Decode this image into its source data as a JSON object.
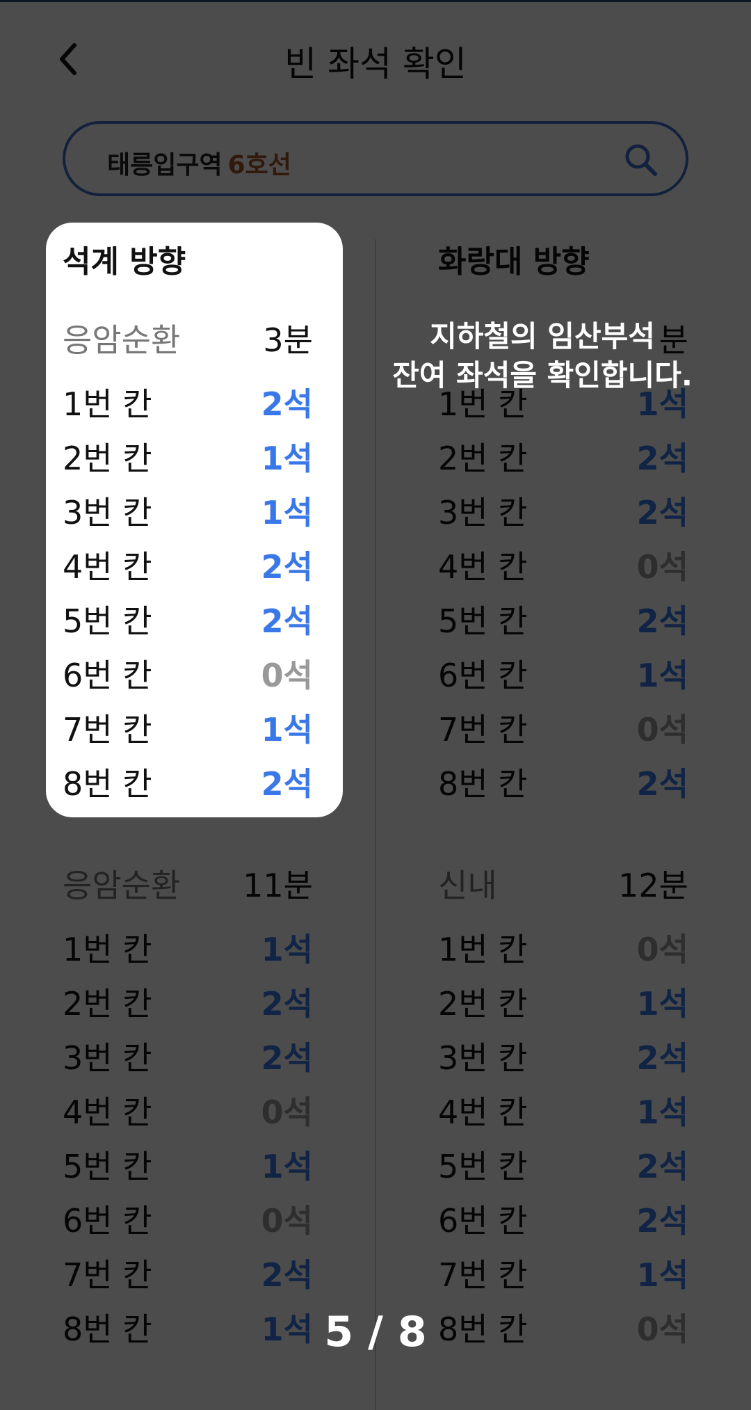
{
  "header": {
    "title": "빈 좌석 확인",
    "back_icon": "chevron-left-icon"
  },
  "search": {
    "station": "태릉입구역",
    "line": "6호선",
    "icon": "search-icon"
  },
  "colors": {
    "accent": "#3d6fd1",
    "seat_available": "#3a78e8",
    "seat_empty": "#999999",
    "line6": "#a4562a"
  },
  "left": {
    "direction": "석계 방향",
    "trains": [
      {
        "dest": "응암순환",
        "min": "3분",
        "cars": [
          {
            "car": "1번 칸",
            "seat": "2석",
            "zero": false
          },
          {
            "car": "2번 칸",
            "seat": "1석",
            "zero": false
          },
          {
            "car": "3번 칸",
            "seat": "1석",
            "zero": false
          },
          {
            "car": "4번 칸",
            "seat": "2석",
            "zero": false
          },
          {
            "car": "5번 칸",
            "seat": "2석",
            "zero": false
          },
          {
            "car": "6번 칸",
            "seat": "0석",
            "zero": true
          },
          {
            "car": "7번 칸",
            "seat": "1석",
            "zero": false
          },
          {
            "car": "8번 칸",
            "seat": "2석",
            "zero": false
          }
        ]
      },
      {
        "dest": "응암순환",
        "min": "11분",
        "cars": [
          {
            "car": "1번 칸",
            "seat": "1석",
            "zero": false
          },
          {
            "car": "2번 칸",
            "seat": "2석",
            "zero": false
          },
          {
            "car": "3번 칸",
            "seat": "2석",
            "zero": false
          },
          {
            "car": "4번 칸",
            "seat": "0석",
            "zero": true
          },
          {
            "car": "5번 칸",
            "seat": "1석",
            "zero": false
          },
          {
            "car": "6번 칸",
            "seat": "0석",
            "zero": true
          },
          {
            "car": "7번 칸",
            "seat": "2석",
            "zero": false
          },
          {
            "car": "8번 칸",
            "seat": "1석",
            "zero": false
          }
        ]
      }
    ]
  },
  "right": {
    "direction": "화랑대 방향",
    "trains": [
      {
        "dest": "",
        "min": "분",
        "cars": [
          {
            "car": "1번 칸",
            "seat": "1석",
            "zero": false
          },
          {
            "car": "2번 칸",
            "seat": "2석",
            "zero": false
          },
          {
            "car": "3번 칸",
            "seat": "2석",
            "zero": false
          },
          {
            "car": "4번 칸",
            "seat": "0석",
            "zero": true
          },
          {
            "car": "5번 칸",
            "seat": "2석",
            "zero": false
          },
          {
            "car": "6번 칸",
            "seat": "1석",
            "zero": false
          },
          {
            "car": "7번 칸",
            "seat": "0석",
            "zero": true
          },
          {
            "car": "8번 칸",
            "seat": "2석",
            "zero": false
          }
        ]
      },
      {
        "dest": "신내",
        "min": "12분",
        "cars": [
          {
            "car": "1번 칸",
            "seat": "0석",
            "zero": true
          },
          {
            "car": "2번 칸",
            "seat": "1석",
            "zero": false
          },
          {
            "car": "3번 칸",
            "seat": "2석",
            "zero": false
          },
          {
            "car": "4번 칸",
            "seat": "1석",
            "zero": false
          },
          {
            "car": "5번 칸",
            "seat": "2석",
            "zero": false
          },
          {
            "car": "6번 칸",
            "seat": "2석",
            "zero": false
          },
          {
            "car": "7번 칸",
            "seat": "1석",
            "zero": false
          },
          {
            "car": "8번 칸",
            "seat": "0석",
            "zero": true
          }
        ]
      }
    ]
  },
  "tip": {
    "line1": "지하철의 임산부석",
    "line2": "잔여 좌석을 확인합니다."
  },
  "pager": {
    "text": "5 / 8"
  }
}
